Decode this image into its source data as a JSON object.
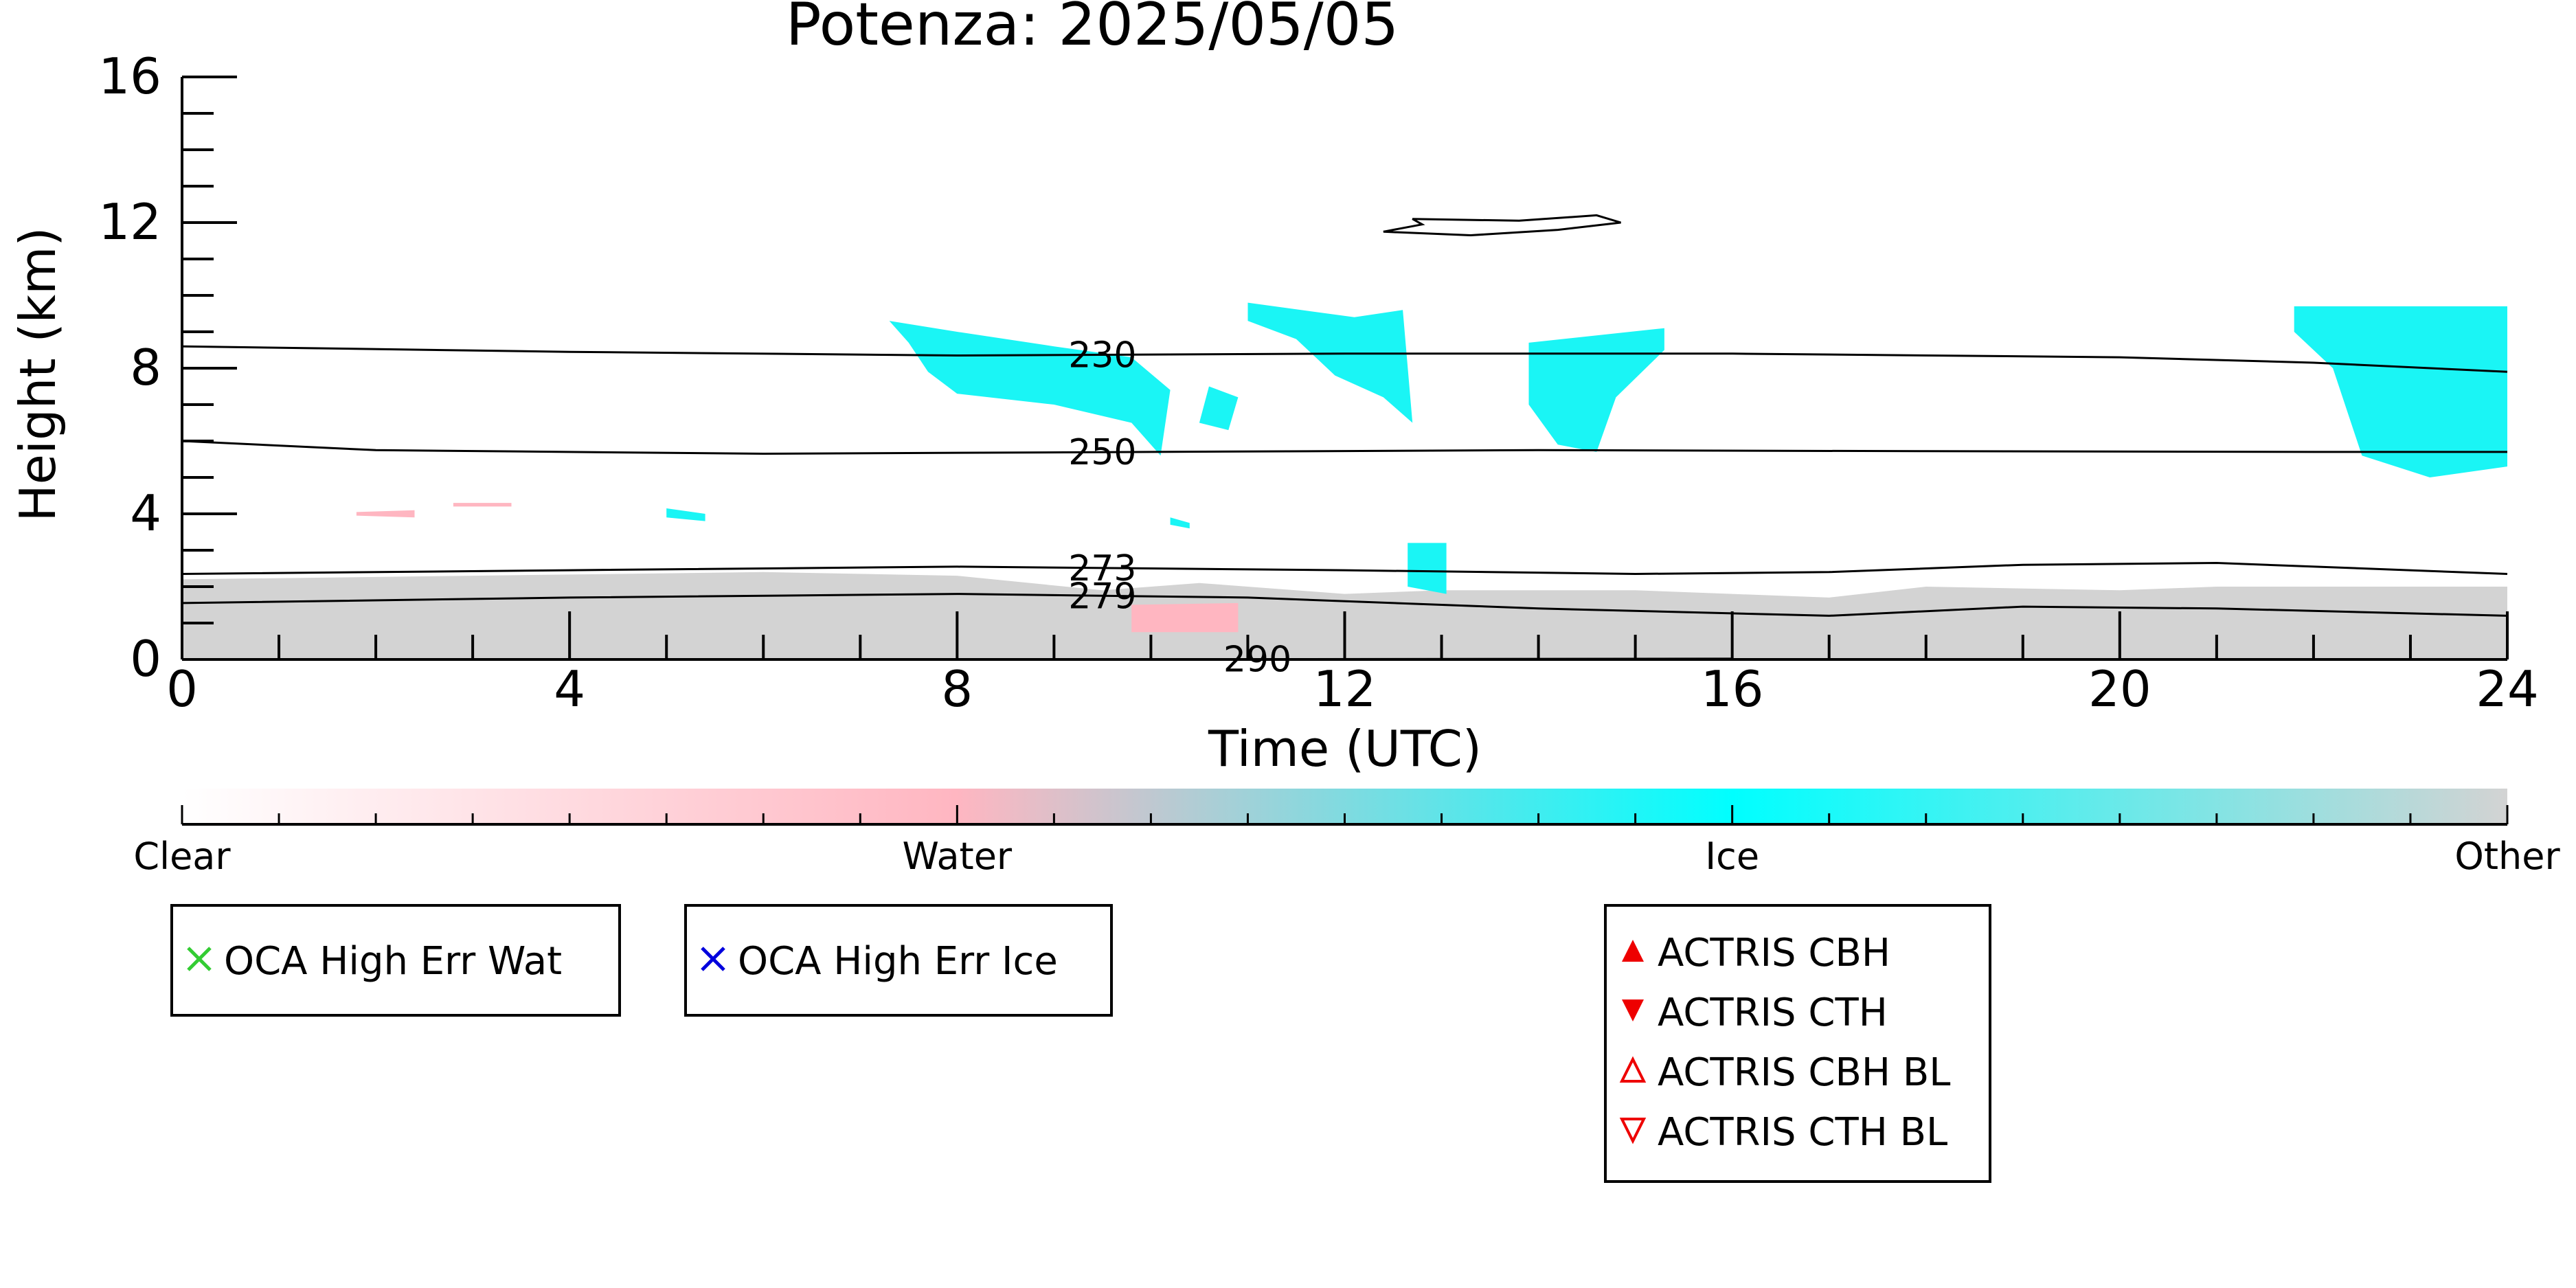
{
  "chart_data": {
    "type": "heatmap",
    "title": "Potenza: 2025/05/05",
    "xlabel": "Time (UTC)",
    "ylabel": "Height (km)",
    "xlim": [
      0,
      24
    ],
    "ylim": [
      0,
      16
    ],
    "x_ticks": [
      "0",
      "4",
      "8",
      "12",
      "16",
      "20",
      "24"
    ],
    "y_ticks": [
      "0",
      "4",
      "8",
      "12",
      "16"
    ],
    "isotherms": [
      {
        "label": "230",
        "label_x": 9.5,
        "points": [
          [
            0,
            8.6
          ],
          [
            4,
            8.45
          ],
          [
            8,
            8.35
          ],
          [
            12,
            8.4
          ],
          [
            16,
            8.4
          ],
          [
            20,
            8.3
          ],
          [
            22,
            8.15
          ],
          [
            24,
            7.9
          ]
        ]
      },
      {
        "label": "250",
        "label_x": 9.5,
        "points": [
          [
            0,
            6.0
          ],
          [
            2,
            5.75
          ],
          [
            6,
            5.65
          ],
          [
            10,
            5.7
          ],
          [
            14,
            5.75
          ],
          [
            18,
            5.72
          ],
          [
            22,
            5.7
          ],
          [
            24,
            5.7
          ]
        ]
      },
      {
        "label": "273",
        "label_x": 9.5,
        "points": [
          [
            0,
            2.35
          ],
          [
            4,
            2.45
          ],
          [
            8,
            2.55
          ],
          [
            12,
            2.45
          ],
          [
            15,
            2.35
          ],
          [
            17,
            2.4
          ],
          [
            19,
            2.6
          ],
          [
            21,
            2.65
          ],
          [
            24,
            2.35
          ]
        ]
      },
      {
        "label": "279",
        "label_x": 9.5,
        "points": [
          [
            0,
            1.55
          ],
          [
            4,
            1.7
          ],
          [
            8,
            1.8
          ],
          [
            11,
            1.7
          ],
          [
            14,
            1.4
          ],
          [
            17,
            1.2
          ],
          [
            19,
            1.45
          ],
          [
            21,
            1.4
          ],
          [
            24,
            1.2
          ]
        ]
      },
      {
        "label": "290",
        "label_x": 11.1,
        "points": [
          [
            8,
            0.0
          ],
          [
            16,
            0.02
          ]
        ]
      }
    ],
    "contour_high": {
      "points": [
        [
          12.4,
          11.75
        ],
        [
          12.8,
          11.95
        ],
        [
          12.7,
          12.1
        ],
        [
          13.8,
          12.05
        ],
        [
          14.6,
          12.2
        ],
        [
          14.85,
          12.0
        ],
        [
          14.2,
          11.8
        ],
        [
          13.3,
          11.65
        ],
        [
          12.4,
          11.75
        ]
      ]
    },
    "regions": [
      {
        "class": "Other",
        "polygon": [
          [
            0,
            0
          ],
          [
            0,
            2.2
          ],
          [
            3,
            2.3
          ],
          [
            6,
            2.4
          ],
          [
            8,
            2.3
          ],
          [
            9.5,
            1.9
          ],
          [
            10.5,
            2.1
          ],
          [
            12,
            1.8
          ],
          [
            13,
            1.9
          ],
          [
            15,
            1.9
          ],
          [
            16,
            1.8
          ],
          [
            17,
            1.7
          ],
          [
            18,
            2.0
          ],
          [
            20,
            1.9
          ],
          [
            21,
            2.0
          ],
          [
            24,
            2.0
          ],
          [
            24,
            0
          ]
        ]
      },
      {
        "class": "Water",
        "polygon": [
          [
            9.8,
            0.75
          ],
          [
            10.9,
            0.75
          ],
          [
            10.9,
            1.55
          ],
          [
            9.8,
            1.5
          ]
        ]
      },
      {
        "class": "Water",
        "polygon": [
          [
            1.8,
            3.95
          ],
          [
            2.4,
            3.9
          ],
          [
            2.4,
            4.1
          ],
          [
            1.8,
            4.05
          ]
        ]
      },
      {
        "class": "Water",
        "polygon": [
          [
            2.8,
            4.2
          ],
          [
            3.4,
            4.2
          ],
          [
            3.4,
            4.3
          ],
          [
            2.8,
            4.3
          ]
        ]
      },
      {
        "class": "Ice",
        "polygon": [
          [
            7.3,
            9.3
          ],
          [
            8.0,
            9.0
          ],
          [
            9.0,
            8.6
          ],
          [
            9.8,
            8.3
          ],
          [
            10.2,
            7.4
          ],
          [
            10.1,
            5.6
          ],
          [
            9.8,
            6.5
          ],
          [
            9.0,
            7.0
          ],
          [
            8.0,
            7.3
          ],
          [
            7.7,
            7.9
          ],
          [
            7.5,
            8.7
          ]
        ]
      },
      {
        "class": "Ice",
        "polygon": [
          [
            10.6,
            7.5
          ],
          [
            10.9,
            7.2
          ],
          [
            10.8,
            6.3
          ],
          [
            10.5,
            6.5
          ]
        ]
      },
      {
        "class": "Ice",
        "polygon": [
          [
            11.0,
            9.8
          ],
          [
            12.1,
            9.4
          ],
          [
            12.6,
            9.6
          ],
          [
            12.7,
            6.5
          ],
          [
            12.4,
            7.2
          ],
          [
            11.9,
            7.8
          ],
          [
            11.5,
            8.8
          ],
          [
            11.0,
            9.3
          ]
        ]
      },
      {
        "class": "Ice",
        "polygon": [
          [
            13.9,
            8.7
          ],
          [
            15.3,
            9.1
          ],
          [
            15.3,
            8.5
          ],
          [
            14.8,
            7.2
          ],
          [
            14.6,
            5.7
          ],
          [
            14.2,
            5.9
          ],
          [
            13.9,
            7.0
          ]
        ]
      },
      {
        "class": "Ice",
        "polygon": [
          [
            21.8,
            9.7
          ],
          [
            24,
            9.7
          ],
          [
            24,
            5.3
          ],
          [
            23.2,
            5.0
          ],
          [
            22.5,
            5.6
          ],
          [
            22.2,
            8.0
          ],
          [
            21.8,
            9.0
          ]
        ]
      },
      {
        "class": "Ice",
        "polygon": [
          [
            5.0,
            4.15
          ],
          [
            5.4,
            4.0
          ],
          [
            5.4,
            3.8
          ],
          [
            5.0,
            3.9
          ]
        ]
      },
      {
        "class": "Ice",
        "polygon": [
          [
            10.2,
            3.9
          ],
          [
            10.4,
            3.75
          ],
          [
            10.4,
            3.6
          ],
          [
            10.2,
            3.7
          ]
        ]
      },
      {
        "class": "Ice",
        "polygon": [
          [
            12.65,
            3.2
          ],
          [
            13.05,
            3.2
          ],
          [
            13.05,
            1.8
          ],
          [
            12.65,
            2.0
          ]
        ]
      }
    ],
    "colorbar": {
      "labels": [
        "Clear",
        "Water",
        "Ice",
        "Other"
      ],
      "stops": [
        {
          "value": 0,
          "color": "#ffffff"
        },
        {
          "value": 0.333,
          "color": "#ffb6c1"
        },
        {
          "value": 0.667,
          "color": "#00ffff"
        },
        {
          "value": 1,
          "color": "#d3d3d3"
        }
      ]
    },
    "legend_groups": [
      {
        "entries": [
          {
            "label": "OCA High Err Wat",
            "marker": "x-mark",
            "color": "#33cc33"
          }
        ]
      },
      {
        "entries": [
          {
            "label": "OCA High Err Ice",
            "marker": "x-mark",
            "color": "#0000dd"
          }
        ]
      },
      {
        "entries": [
          {
            "label": "ACTRIS CBH",
            "marker": "triangle-up-filled",
            "color": "#ee0000"
          },
          {
            "label": "ACTRIS CTH",
            "marker": "triangle-down-filled",
            "color": "#ee0000"
          },
          {
            "label": "ACTRIS CBH BL",
            "marker": "triangle-up-open",
            "color": "#ee0000"
          },
          {
            "label": "ACTRIS CTH BL",
            "marker": "triangle-down-open",
            "color": "#ee0000"
          }
        ]
      }
    ],
    "colors": {
      "Clear": "#ffffff",
      "Water": "#ffb6c1",
      "Ice": "#1af5f5",
      "Other": "#d3d3d3"
    },
    "grid": false
  }
}
